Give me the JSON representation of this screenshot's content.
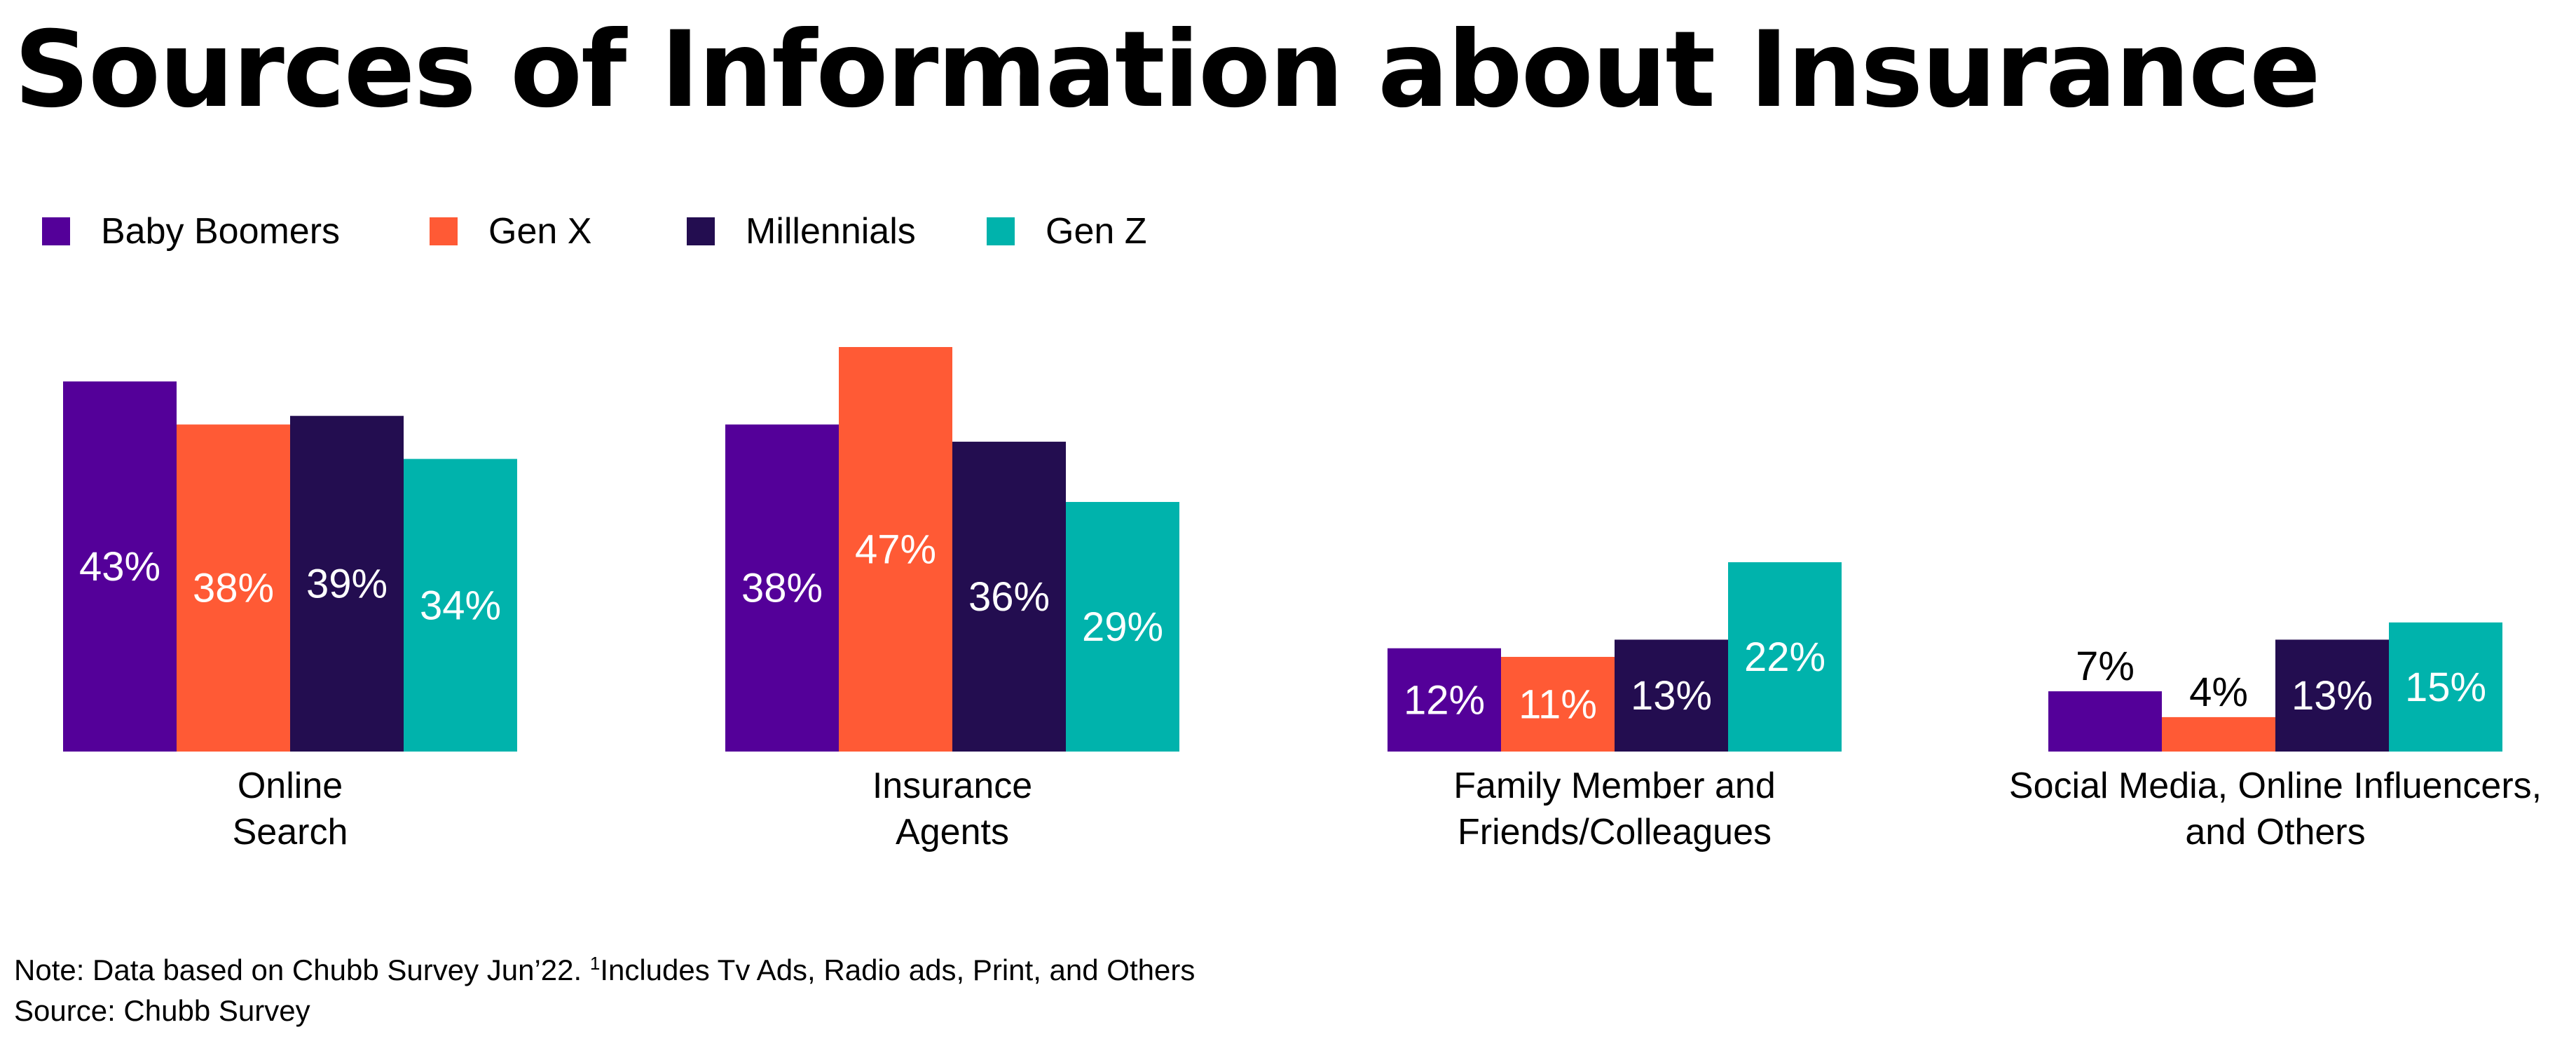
{
  "title": "Sources of Information about Insurance",
  "colors": {
    "baby_boomers": "#540099",
    "gen_x": "#FF5A35",
    "millennials": "#230D50",
    "gen_z": "#00B3AC"
  },
  "chart_data": {
    "type": "bar",
    "title": "Sources of Information about Insurance",
    "categories": [
      [
        "Online",
        "Search"
      ],
      [
        "Insurance",
        "Agents"
      ],
      [
        "Family Member and",
        "Friends/Colleagues"
      ],
      [
        "Social Media, Online Influencers,",
        "and Others"
      ]
    ],
    "series": [
      {
        "name": "Baby Boomers",
        "values": [
          43,
          38,
          12,
          7
        ],
        "labels": [
          "43%",
          "38%",
          "12%",
          "7%"
        ]
      },
      {
        "name": "Gen X",
        "values": [
          38,
          47,
          11,
          4
        ],
        "labels": [
          "38%",
          "47%",
          "11%",
          "4%"
        ]
      },
      {
        "name": "Millennials",
        "values": [
          39,
          36,
          13,
          13
        ],
        "labels": [
          "39%",
          "36%",
          "13%",
          "13%"
        ]
      },
      {
        "name": "Gen Z",
        "values": [
          34,
          29,
          22,
          15
        ],
        "labels": [
          "34%",
          "29%",
          "22%",
          "15%"
        ]
      }
    ],
    "ylim": [
      0,
      47
    ],
    "grid": false,
    "legend_position": "top-left",
    "xlabel": "",
    "ylabel": ""
  },
  "footnote": {
    "note_prefix": "Note: Data based on Chubb Survey Jun’22. ",
    "note_superscript": "1",
    "note_suffix": "Includes Tv Ads, Radio ads, Print, and Others",
    "source": "Source: Chubb Survey"
  }
}
